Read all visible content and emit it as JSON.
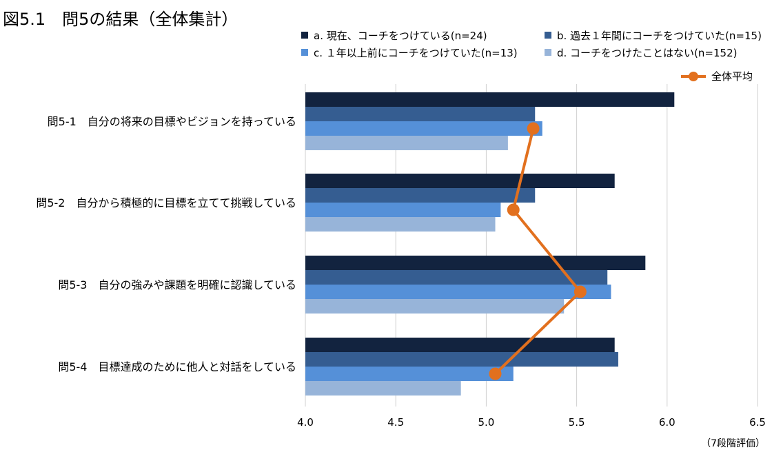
{
  "figure_title": "図5.1　問5の結果（全体集計）",
  "unit_note": "（7段階評価）",
  "colors": {
    "series_a": "#12233f",
    "series_b": "#355d91",
    "series_c": "#5590d8",
    "series_d": "#97b4d9",
    "overall": "#e2701e",
    "grid": "#cfcfcf"
  },
  "chart_data": {
    "type": "bar",
    "orientation": "horizontal",
    "categories": [
      "問5-1　自分の将来の目標やビジョンを持っている",
      "問5-2　自分から積極的に目標を立てて挑戦している",
      "問5-3　自分の強みや課題を明確に認識している",
      "問5-4　目標達成のために他人と対話をしている"
    ],
    "series": [
      {
        "name": "a. 現在、コーチをつけている(n=24)",
        "values": [
          6.04,
          5.71,
          5.88,
          5.71
        ]
      },
      {
        "name": "b. 過去１年間にコーチをつけていた(n=15)",
        "values": [
          5.27,
          5.27,
          5.67,
          5.73
        ]
      },
      {
        "name": "c. １年以上前にコーチをつけていた(n=13)",
        "values": [
          5.31,
          5.08,
          5.69,
          5.15
        ]
      },
      {
        "name": "d. コーチをつけたことはない(n=152)",
        "values": [
          5.12,
          5.05,
          5.43,
          4.86
        ]
      }
    ],
    "overall": {
      "name": "全体平均",
      "type": "line",
      "values": [
        5.26,
        5.15,
        5.52,
        5.05
      ]
    },
    "xlim": [
      4.0,
      6.5
    ],
    "xticks": [
      "4.0",
      "4.5",
      "5.0",
      "5.5",
      "6.0",
      "6.5"
    ],
    "grid": "vertical",
    "legend_position": "top-right"
  }
}
